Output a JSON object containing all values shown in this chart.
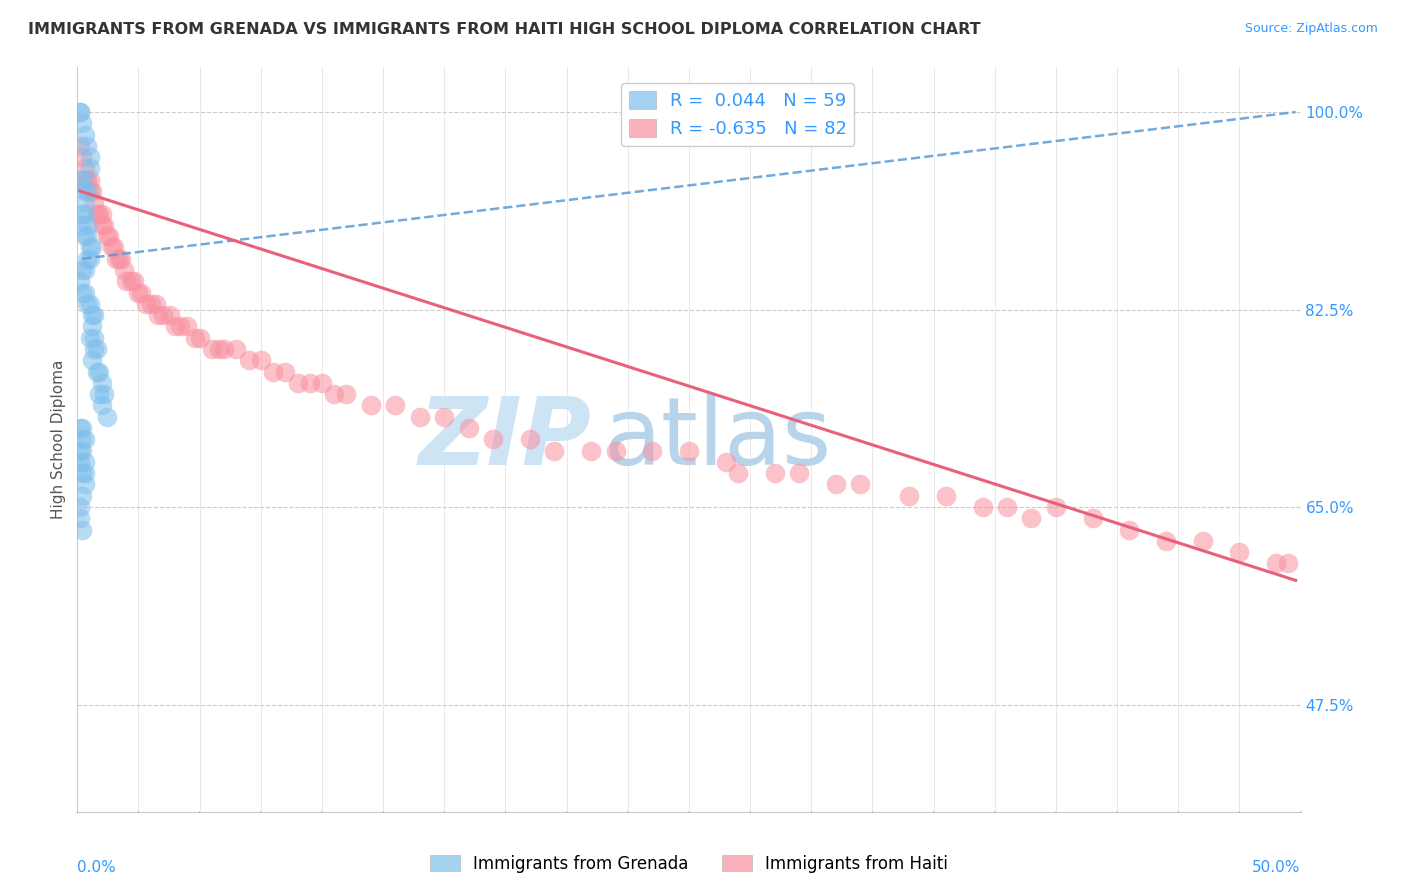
{
  "title": "IMMIGRANTS FROM GRENADA VS IMMIGRANTS FROM HAITI HIGH SCHOOL DIPLOMA CORRELATION CHART",
  "source": "Source: ZipAtlas.com",
  "ylabel": "High School Diploma",
  "xlim": [
    0.0,
    0.5
  ],
  "ylim": [
    0.38,
    1.04
  ],
  "ytick_right_labels": [
    "100.0%",
    "82.5%",
    "65.0%",
    "47.5%"
  ],
  "ytick_right_values": [
    1.0,
    0.825,
    0.65,
    0.475
  ],
  "legend_r_grenada": "0.044",
  "legend_n_grenada": "59",
  "legend_r_haiti": "-0.635",
  "legend_n_haiti": "82",
  "color_grenada": "#7fbfec",
  "color_haiti": "#f890a0",
  "trendline_grenada_color": "#5b9bd5",
  "trendline_haiti_color": "#e8607a",
  "background_color": "#ffffff",
  "watermark_zip": "ZIP",
  "watermark_atlas": "atlas",
  "watermark_color": "#cde4f5",
  "grenada_x": [
    0.001,
    0.001,
    0.002,
    0.003,
    0.004,
    0.005,
    0.005,
    0.001,
    0.002,
    0.003,
    0.004,
    0.003,
    0.002,
    0.003,
    0.004,
    0.002,
    0.003,
    0.004,
    0.005,
    0.006,
    0.005,
    0.004,
    0.003,
    0.002,
    0.001,
    0.002,
    0.003,
    0.004,
    0.005,
    0.006,
    0.007,
    0.006,
    0.005,
    0.007,
    0.008,
    0.007,
    0.006,
    0.008,
    0.009,
    0.01,
    0.009,
    0.011,
    0.01,
    0.012,
    0.002,
    0.003,
    0.001,
    0.001,
    0.002,
    0.003,
    0.001,
    0.001,
    0.002,
    0.001,
    0.002,
    0.002,
    0.003,
    0.003,
    0.002
  ],
  "grenada_y": [
    1.0,
    1.0,
    0.99,
    0.98,
    0.97,
    0.96,
    0.95,
    0.94,
    0.94,
    0.93,
    0.93,
    0.92,
    0.91,
    0.91,
    0.9,
    0.9,
    0.89,
    0.89,
    0.88,
    0.88,
    0.87,
    0.87,
    0.86,
    0.86,
    0.85,
    0.84,
    0.84,
    0.83,
    0.83,
    0.82,
    0.82,
    0.81,
    0.8,
    0.8,
    0.79,
    0.79,
    0.78,
    0.77,
    0.77,
    0.76,
    0.75,
    0.75,
    0.74,
    0.73,
    0.72,
    0.71,
    0.7,
    0.69,
    0.68,
    0.67,
    0.65,
    0.64,
    0.63,
    0.72,
    0.71,
    0.7,
    0.69,
    0.68,
    0.66
  ],
  "haiti_x": [
    0.001,
    0.002,
    0.003,
    0.003,
    0.004,
    0.005,
    0.005,
    0.006,
    0.007,
    0.008,
    0.009,
    0.01,
    0.01,
    0.011,
    0.012,
    0.013,
    0.014,
    0.015,
    0.016,
    0.017,
    0.018,
    0.019,
    0.02,
    0.022,
    0.023,
    0.025,
    0.026,
    0.028,
    0.03,
    0.032,
    0.033,
    0.035,
    0.038,
    0.04,
    0.042,
    0.045,
    0.048,
    0.05,
    0.055,
    0.058,
    0.06,
    0.065,
    0.07,
    0.075,
    0.08,
    0.085,
    0.09,
    0.095,
    0.1,
    0.105,
    0.11,
    0.12,
    0.13,
    0.14,
    0.15,
    0.16,
    0.17,
    0.185,
    0.195,
    0.21,
    0.22,
    0.235,
    0.25,
    0.265,
    0.27,
    0.285,
    0.295,
    0.31,
    0.32,
    0.34,
    0.355,
    0.37,
    0.38,
    0.39,
    0.4,
    0.415,
    0.43,
    0.445,
    0.46,
    0.475,
    0.49,
    0.495
  ],
  "haiti_y": [
    0.97,
    0.96,
    0.95,
    0.94,
    0.94,
    0.94,
    0.93,
    0.93,
    0.92,
    0.91,
    0.91,
    0.91,
    0.9,
    0.9,
    0.89,
    0.89,
    0.88,
    0.88,
    0.87,
    0.87,
    0.87,
    0.86,
    0.85,
    0.85,
    0.85,
    0.84,
    0.84,
    0.83,
    0.83,
    0.83,
    0.82,
    0.82,
    0.82,
    0.81,
    0.81,
    0.81,
    0.8,
    0.8,
    0.79,
    0.79,
    0.79,
    0.79,
    0.78,
    0.78,
    0.77,
    0.77,
    0.76,
    0.76,
    0.76,
    0.75,
    0.75,
    0.74,
    0.74,
    0.73,
    0.73,
    0.72,
    0.71,
    0.71,
    0.7,
    0.7,
    0.7,
    0.7,
    0.7,
    0.69,
    0.68,
    0.68,
    0.68,
    0.67,
    0.67,
    0.66,
    0.66,
    0.65,
    0.65,
    0.64,
    0.65,
    0.64,
    0.63,
    0.62,
    0.62,
    0.61,
    0.6,
    0.6
  ],
  "grenada_trendline": [
    0.002,
    0.87,
    0.498,
    1.0
  ],
  "haiti_trendline": [
    0.001,
    0.93,
    0.498,
    0.585
  ]
}
